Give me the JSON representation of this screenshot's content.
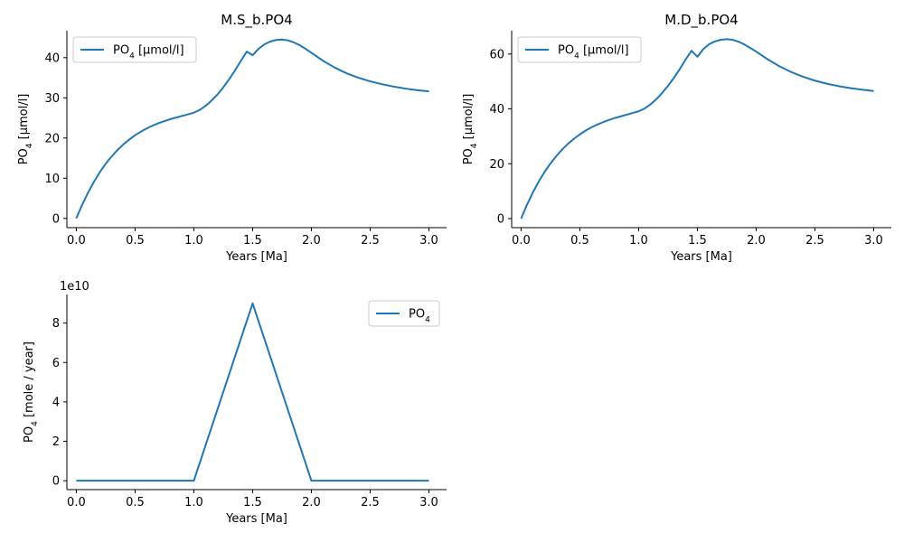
{
  "chart_data": [
    {
      "type": "line",
      "title": "M.S_b.PO4",
      "xlabel": "Years [Ma]",
      "ylabel": {
        "pre": "PO",
        "sub": "4",
        "post": " [µmol/l]"
      },
      "xlim": [
        -0.08,
        3.15
      ],
      "ylim": [
        -2.3,
        46.7
      ],
      "xticks": [
        0.0,
        0.5,
        1.0,
        1.5,
        2.0,
        2.5,
        3.0
      ],
      "xtick_labels": [
        "0.0",
        "0.5",
        "1.0",
        "1.5",
        "2.0",
        "2.5",
        "3.0"
      ],
      "yticks": [
        0,
        10,
        20,
        30,
        40
      ],
      "ytick_labels": [
        "0",
        "10",
        "20",
        "30",
        "40"
      ],
      "legend_position": "top-left",
      "series": [
        {
          "name": {
            "pre": "PO",
            "sub": "4",
            "post": " [µmol/l]"
          },
          "color": "#1f77b4",
          "x": [
            0.0,
            0.05,
            0.1,
            0.15,
            0.2,
            0.25,
            0.3,
            0.35,
            0.4,
            0.45,
            0.5,
            0.55,
            0.6,
            0.65,
            0.7,
            0.75,
            0.8,
            0.85,
            0.9,
            0.95,
            1.0,
            1.05,
            1.1,
            1.15,
            1.2,
            1.25,
            1.3,
            1.35,
            1.4,
            1.45,
            1.5,
            1.55,
            1.6,
            1.65,
            1.7,
            1.75,
            1.8,
            1.85,
            1.9,
            1.95,
            2.0,
            2.1,
            2.2,
            2.3,
            2.4,
            2.5,
            2.6,
            2.7,
            2.8,
            2.9,
            3.0
          ],
          "y": [
            0.0,
            3.4,
            6.4,
            9.1,
            11.5,
            13.6,
            15.4,
            17.0,
            18.4,
            19.6,
            20.7,
            21.6,
            22.4,
            23.1,
            23.7,
            24.2,
            24.7,
            25.1,
            25.5,
            25.9,
            26.3,
            27.0,
            28.0,
            29.3,
            30.8,
            32.6,
            34.6,
            36.8,
            39.2,
            41.5,
            40.6,
            42.2,
            43.3,
            44.0,
            44.4,
            44.5,
            44.3,
            43.8,
            43.1,
            42.2,
            41.2,
            39.2,
            37.5,
            36.1,
            35.0,
            34.1,
            33.4,
            32.8,
            32.3,
            31.9,
            31.6
          ]
        }
      ]
    },
    {
      "type": "line",
      "title": "M.D_b.PO4",
      "xlabel": "Years [Ma]",
      "ylabel": {
        "pre": "PO",
        "sub": "4",
        "post": " [µmol/l]"
      },
      "xlim": [
        -0.08,
        3.15
      ],
      "ylim": [
        -3.3,
        68.5
      ],
      "xticks": [
        0.0,
        0.5,
        1.0,
        1.5,
        2.0,
        2.5,
        3.0
      ],
      "xtick_labels": [
        "0.0",
        "0.5",
        "1.0",
        "1.5",
        "2.0",
        "2.5",
        "3.0"
      ],
      "yticks": [
        0,
        20,
        40,
        60
      ],
      "ytick_labels": [
        "0",
        "20",
        "40",
        "60"
      ],
      "legend_position": "top-left",
      "series": [
        {
          "name": {
            "pre": "PO",
            "sub": "4",
            "post": " [µmol/l]"
          },
          "color": "#1f77b4",
          "x": [
            0.0,
            0.05,
            0.1,
            0.15,
            0.2,
            0.25,
            0.3,
            0.35,
            0.4,
            0.45,
            0.5,
            0.55,
            0.6,
            0.65,
            0.7,
            0.75,
            0.8,
            0.85,
            0.9,
            0.95,
            1.0,
            1.05,
            1.1,
            1.15,
            1.2,
            1.25,
            1.3,
            1.35,
            1.4,
            1.45,
            1.5,
            1.55,
            1.6,
            1.65,
            1.7,
            1.75,
            1.8,
            1.85,
            1.9,
            1.95,
            2.0,
            2.1,
            2.2,
            2.3,
            2.4,
            2.5,
            2.6,
            2.7,
            2.8,
            2.9,
            3.0
          ],
          "y": [
            0.0,
            5.0,
            9.5,
            13.5,
            17.0,
            20.1,
            22.8,
            25.2,
            27.3,
            29.1,
            30.7,
            32.1,
            33.3,
            34.3,
            35.2,
            36.0,
            36.7,
            37.3,
            37.9,
            38.5,
            39.1,
            40.1,
            41.6,
            43.5,
            45.8,
            48.4,
            51.3,
            54.5,
            58.0,
            61.2,
            59.0,
            61.8,
            63.6,
            64.6,
            65.2,
            65.4,
            65.2,
            64.5,
            63.5,
            62.2,
            60.9,
            58.0,
            55.5,
            53.4,
            51.7,
            50.3,
            49.2,
            48.3,
            47.6,
            47.0,
            46.5
          ]
        }
      ]
    },
    {
      "type": "line",
      "title": "",
      "xlabel": "Years [Ma]",
      "ylabel": {
        "pre": "PO",
        "sub": "4",
        "post": " [mole / year]"
      },
      "offset_text": "1e10",
      "xlim": [
        -0.08,
        3.15
      ],
      "ylim": [
        -0.45,
        9.45
      ],
      "xticks": [
        0.0,
        0.5,
        1.0,
        1.5,
        2.0,
        2.5,
        3.0
      ],
      "xtick_labels": [
        "0.0",
        "0.5",
        "1.0",
        "1.5",
        "2.0",
        "2.5",
        "3.0"
      ],
      "yticks": [
        0,
        2,
        4,
        6,
        8
      ],
      "ytick_labels": [
        "0",
        "2",
        "4",
        "6",
        "8"
      ],
      "legend_position": "top-right",
      "series": [
        {
          "name": {
            "pre": "PO",
            "sub": "4",
            "post": ""
          },
          "color": "#1f77b4",
          "x": [
            0.0,
            0.5,
            1.0,
            1.5,
            2.0,
            2.5,
            3.0
          ],
          "y": [
            0.0,
            0.0,
            0.0,
            9.0,
            0.0,
            0.0,
            0.0
          ]
        }
      ]
    }
  ]
}
